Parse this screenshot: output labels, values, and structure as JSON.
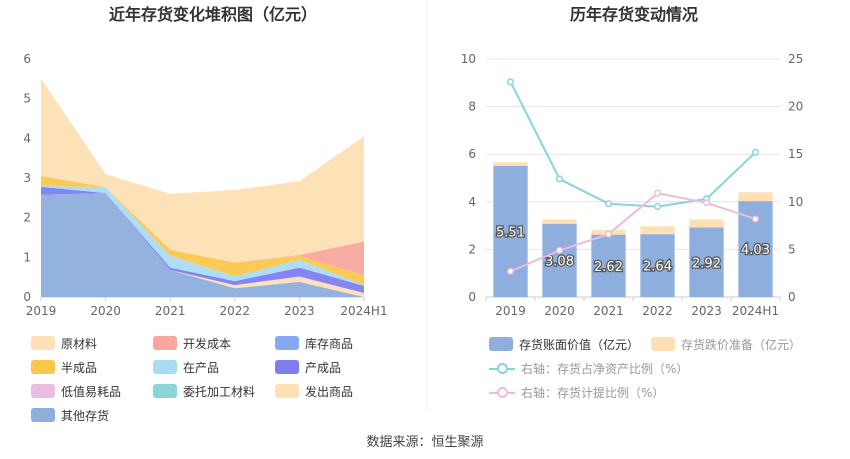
{
  "source_label": "数据来源：恒生聚源",
  "chart_data": [
    {
      "type": "area",
      "title": "近年存货变化堆积图（亿元）",
      "categories": [
        "2019",
        "2020",
        "2021",
        "2022",
        "2023",
        "2024H1"
      ],
      "ylim": [
        0,
        6
      ],
      "yticks": [
        0,
        1,
        2,
        3,
        4,
        5,
        6
      ],
      "grid": false,
      "legend_position": "bottom",
      "series": [
        {
          "name": "其他存货",
          "color": "#8eaedd",
          "values": [
            2.58,
            2.62,
            0.68,
            0.22,
            0.38,
            0
          ]
        },
        {
          "name": "发出商品",
          "color": "#fde0b4",
          "values": [
            0,
            0,
            0,
            0.08,
            0.12,
            0.1
          ]
        },
        {
          "name": "委托加工材料",
          "color": "#89d5d8",
          "values": [
            0,
            0,
            0,
            0,
            0,
            0
          ]
        },
        {
          "name": "低值易耗品",
          "color": "#ebbde0",
          "values": [
            0,
            0,
            0,
            0,
            0.02,
            0
          ]
        },
        {
          "name": "产成品",
          "color": "#7d7ef0",
          "values": [
            0.2,
            0,
            0.06,
            0.1,
            0.22,
            0.18
          ]
        },
        {
          "name": "在产品",
          "color": "#a9dcf4",
          "values": [
            0.02,
            0.15,
            0.3,
            0.12,
            0.2,
            0.02
          ]
        },
        {
          "name": "半成品",
          "color": "#fbc64c",
          "values": [
            0.25,
            0,
            0.15,
            0.35,
            0.1,
            0.25
          ]
        },
        {
          "name": "库存商品",
          "color": "#86a9f7",
          "values": [
            0,
            0,
            0,
            0,
            0,
            0
          ]
        },
        {
          "name": "开发成本",
          "color": "#f7a79d",
          "values": [
            0,
            0,
            0,
            0,
            0.02,
            0.85
          ]
        },
        {
          "name": "原材料",
          "color": "#fde0b4",
          "values": [
            2.45,
            0.33,
            1.41,
            1.83,
            1.86,
            2.65
          ]
        }
      ],
      "legend_order": [
        "原材料",
        "开发成本",
        "库存商品",
        "半成品",
        "在产品",
        "产成品",
        "低值易耗品",
        "委托加工材料",
        "发出商品",
        "其他存货"
      ]
    },
    {
      "type": "bar",
      "title": "历年存货变动情况",
      "categories": [
        "2019",
        "2020",
        "2021",
        "2022",
        "2023",
        "2024H1"
      ],
      "ylim": [
        0,
        10
      ],
      "yticks": [
        0,
        2,
        4,
        6,
        8,
        10
      ],
      "y2lim": [
        0,
        25
      ],
      "y2ticks": [
        0,
        5,
        10,
        15,
        20,
        25
      ],
      "grid": true,
      "legend_position": "bottom",
      "series": [
        {
          "name": "存货账面价值（亿元）",
          "kind": "bar",
          "color": "#8eaedd",
          "values": [
            5.51,
            3.08,
            2.62,
            2.64,
            2.92,
            4.03
          ],
          "labels": [
            "5.51",
            "3.08",
            "2.62",
            "2.64",
            "2.92",
            "4.03"
          ]
        },
        {
          "name": "存货跌价准备（亿元）",
          "kind": "bar",
          "color": "#fde0b4",
          "values": [
            0.15,
            0.18,
            0.2,
            0.33,
            0.34,
            0.37
          ]
        },
        {
          "name": "右轴：存货占净资产比例（%）",
          "kind": "line",
          "axis": "right",
          "color": "#88d4de",
          "values": [
            22.6,
            12.4,
            9.8,
            9.5,
            10.3,
            15.2
          ]
        },
        {
          "name": "右轴：存货计提比例（%）",
          "kind": "line",
          "axis": "right",
          "color": "#ecbcdb",
          "values": [
            2.7,
            4.9,
            6.6,
            10.9,
            9.9,
            8.2
          ]
        }
      ]
    }
  ]
}
